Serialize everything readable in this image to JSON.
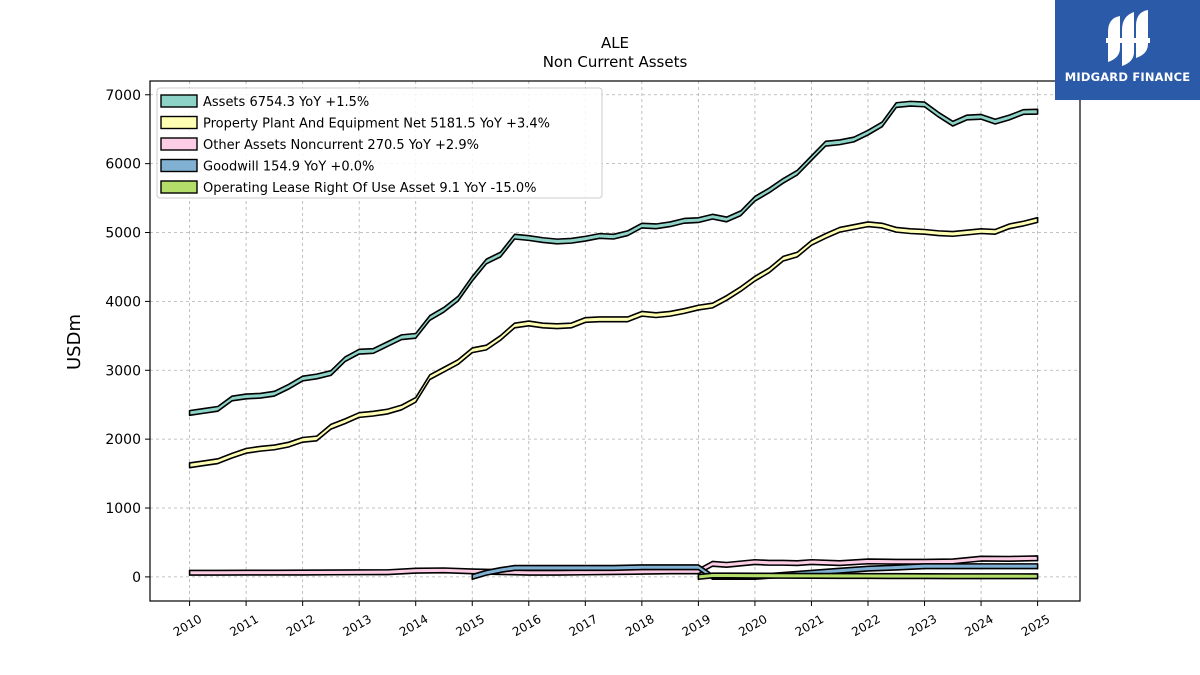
{
  "brand": {
    "name": "MIDGARD FINANCE",
    "logo_icon": "midgard-logo-icon",
    "background": "#2a5aa8"
  },
  "chart_data": {
    "type": "area",
    "title": "ALE",
    "subtitle": "Non Current  Assets",
    "ylabel": "USDm",
    "xlabel": "",
    "ylim": [
      -350,
      7200
    ],
    "xlim": [
      2009.3,
      2025.75
    ],
    "yticks": [
      0,
      1000,
      2000,
      3000,
      4000,
      5000,
      6000,
      7000
    ],
    "xticks": [
      "2010",
      "2011",
      "2012",
      "2013",
      "2014",
      "2015",
      "2016",
      "2017",
      "2018",
      "2019",
      "2020",
      "2021",
      "2022",
      "2023",
      "2024",
      "2025"
    ],
    "grid": true,
    "legend_position": "top-left",
    "series": [
      {
        "name": "Assets  6754.3 YoY +1.5%",
        "color": "#8dd3c7",
        "x": [
          2010.0,
          2010.25,
          2010.5,
          2010.75,
          2011.0,
          2011.25,
          2011.5,
          2011.75,
          2012.0,
          2012.25,
          2012.5,
          2012.75,
          2013.0,
          2013.25,
          2013.5,
          2013.75,
          2014.0,
          2014.25,
          2014.5,
          2014.75,
          2015.0,
          2015.25,
          2015.5,
          2015.75,
          2016.0,
          2016.25,
          2016.5,
          2016.75,
          2017.0,
          2017.25,
          2017.5,
          2017.75,
          2018.0,
          2018.25,
          2018.5,
          2018.75,
          2019.0,
          2019.25,
          2019.5,
          2019.75,
          2020.0,
          2020.25,
          2020.5,
          2020.75,
          2021.0,
          2021.25,
          2021.5,
          2021.75,
          2022.0,
          2022.25,
          2022.5,
          2022.75,
          2023.0,
          2023.25,
          2023.5,
          2023.75,
          2024.0,
          2024.25,
          2024.5,
          2024.75,
          2025.0
        ],
        "values": [
          2380,
          2410,
          2440,
          2590,
          2620,
          2630,
          2660,
          2760,
          2880,
          2910,
          2960,
          3160,
          3270,
          3280,
          3380,
          3480,
          3500,
          3760,
          3880,
          4040,
          4330,
          4580,
          4680,
          4940,
          4920,
          4890,
          4870,
          4880,
          4910,
          4950,
          4940,
          4990,
          5100,
          5090,
          5120,
          5170,
          5180,
          5230,
          5190,
          5280,
          5490,
          5610,
          5750,
          5870,
          6080,
          6290,
          6310,
          6350,
          6450,
          6570,
          6850,
          6870,
          6860,
          6710,
          6580,
          6670,
          6680,
          6610,
          6670,
          6750,
          6754.3
        ]
      },
      {
        "name": "Property Plant And Equipment Net  5181.5 YoY +3.4%",
        "color": "#ffffb3",
        "x": [
          2010.0,
          2010.25,
          2010.5,
          2010.75,
          2011.0,
          2011.25,
          2011.5,
          2011.75,
          2012.0,
          2012.25,
          2012.5,
          2012.75,
          2013.0,
          2013.25,
          2013.5,
          2013.75,
          2014.0,
          2014.25,
          2014.5,
          2014.75,
          2015.0,
          2015.25,
          2015.5,
          2015.75,
          2016.0,
          2016.25,
          2016.5,
          2016.75,
          2017.0,
          2017.25,
          2017.5,
          2017.75,
          2018.0,
          2018.25,
          2018.5,
          2018.75,
          2019.0,
          2019.25,
          2019.5,
          2019.75,
          2020.0,
          2020.25,
          2020.5,
          2020.75,
          2021.0,
          2021.25,
          2021.5,
          2021.75,
          2022.0,
          2022.25,
          2022.5,
          2022.75,
          2023.0,
          2023.25,
          2023.5,
          2023.75,
          2024.0,
          2024.25,
          2024.5,
          2024.75,
          2025.0
        ],
        "values": [
          1620,
          1650,
          1680,
          1760,
          1830,
          1860,
          1880,
          1920,
          1990,
          2010,
          2180,
          2260,
          2350,
          2370,
          2400,
          2460,
          2570,
          2900,
          3010,
          3120,
          3290,
          3330,
          3470,
          3650,
          3680,
          3650,
          3640,
          3650,
          3730,
          3740,
          3740,
          3740,
          3820,
          3800,
          3820,
          3860,
          3910,
          3940,
          4050,
          4180,
          4330,
          4450,
          4620,
          4680,
          4850,
          4950,
          5040,
          5080,
          5120,
          5100,
          5040,
          5020,
          5010,
          4990,
          4980,
          5000,
          5020,
          5010,
          5090,
          5130,
          5181.5
        ]
      },
      {
        "name": "Other Assets Noncurrent  270.5 YoY +2.9%",
        "color": "#fccde5",
        "x": [
          2010.0,
          2010.5,
          2011.0,
          2011.5,
          2012.0,
          2012.5,
          2013.0,
          2013.5,
          2014.0,
          2014.5,
          2015.0,
          2015.5,
          2016.0,
          2016.5,
          2017.0,
          2017.5,
          2018.0,
          2018.5,
          2019.0,
          2019.25,
          2019.5,
          2019.75,
          2020.0,
          2020.25,
          2020.5,
          2020.75,
          2021.0,
          2021.5,
          2022.0,
          2022.5,
          2023.0,
          2023.5,
          2024.0,
          2024.5,
          2025.0
        ],
        "values": [
          60,
          60,
          62,
          62,
          63,
          65,
          67,
          68,
          90,
          95,
          80,
          70,
          60,
          60,
          65,
          70,
          75,
          80,
          80,
          190,
          175,
          195,
          215,
          205,
          205,
          200,
          215,
          200,
          225,
          220,
          220,
          225,
          265,
          262,
          270.5
        ]
      },
      {
        "name": "Goodwill  154.9 YoY +0.0%",
        "color": "#80b1d3",
        "x": [
          2015.0,
          2015.25,
          2015.5,
          2015.75,
          2016.0,
          2016.5,
          2017.0,
          2017.5,
          2018.0,
          2018.5,
          2019.0,
          2019.25,
          2019.5,
          2020.0,
          2020.5,
          2021.0,
          2021.5,
          2022.0,
          2022.5,
          2023.0,
          2023.5,
          2024.0,
          2024.5,
          2025.0
        ],
        "values": [
          0,
          60,
          100,
          130,
          130,
          130,
          130,
          130,
          140,
          140,
          140,
          0,
          0,
          0,
          30,
          60,
          90,
          120,
          135,
          154.9,
          154.9,
          154.9,
          154.9,
          154.9
        ]
      },
      {
        "name": "Operating Lease Right Of Use Asset  9.1 YoY -15.0%",
        "color": "#b3de69",
        "x": [
          2019.0,
          2019.25,
          2019.5,
          2020.0,
          2020.5,
          2021.0,
          2021.5,
          2022.0,
          2022.5,
          2023.0,
          2023.5,
          2024.0,
          2024.5,
          2025.0
        ],
        "values": [
          0,
          20,
          20,
          18,
          16,
          15,
          14,
          13,
          12,
          11,
          10,
          10,
          10,
          9.1
        ]
      }
    ]
  }
}
